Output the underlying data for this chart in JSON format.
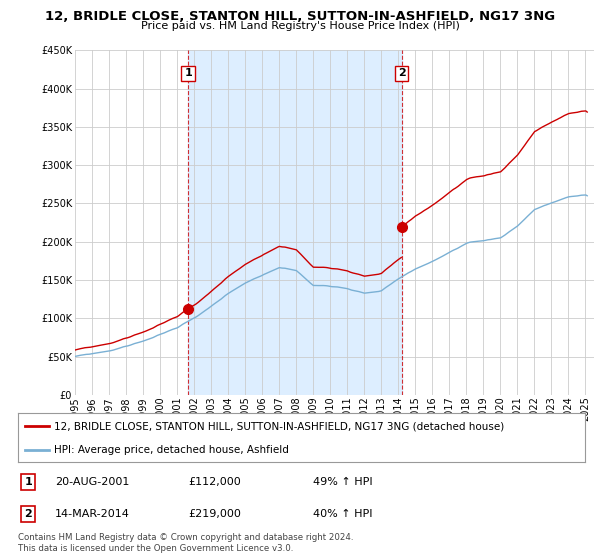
{
  "title": "12, BRIDLE CLOSE, STANTON HILL, SUTTON-IN-ASHFIELD, NG17 3NG",
  "subtitle": "Price paid vs. HM Land Registry's House Price Index (HPI)",
  "legend_label_red": "12, BRIDLE CLOSE, STANTON HILL, SUTTON-IN-ASHFIELD, NG17 3NG (detached house)",
  "legend_label_blue": "HPI: Average price, detached house, Ashfield",
  "sale1_date": "20-AUG-2001",
  "sale1_price": "£112,000",
  "sale1_hpi": "49% ↑ HPI",
  "sale2_date": "14-MAR-2014",
  "sale2_price": "£219,000",
  "sale2_hpi": "40% ↑ HPI",
  "footnote": "Contains HM Land Registry data © Crown copyright and database right 2024.\nThis data is licensed under the Open Government Licence v3.0.",
  "ylim": [
    0,
    450000
  ],
  "yticks": [
    0,
    50000,
    100000,
    150000,
    200000,
    250000,
    300000,
    350000,
    400000,
    450000
  ],
  "background_color": "#ffffff",
  "plot_bg_color": "#ffffff",
  "grid_color": "#cccccc",
  "red_color": "#cc0000",
  "blue_color": "#7ab0d4",
  "shade_color": "#ddeeff",
  "sale1_x": 2001.646,
  "sale1_y": 112000,
  "sale2_x": 2014.204,
  "sale2_y": 219000,
  "xmin": 1995,
  "xmax": 2025.5
}
